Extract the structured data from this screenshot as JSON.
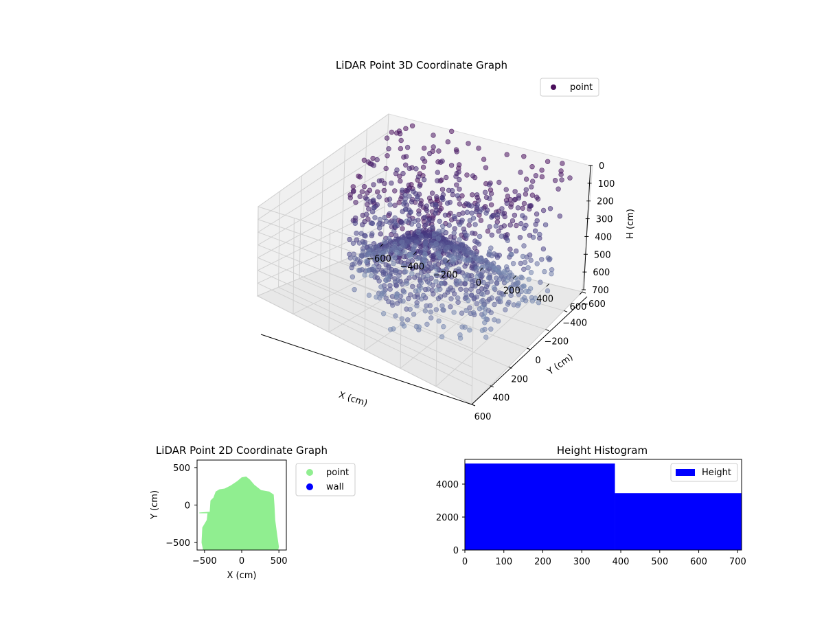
{
  "colors": {
    "point_3d_top": "#4a0f5c",
    "point_3d_mid": "#453b82",
    "point_3d_low": "#7b8fb4",
    "point_2d": "#90ee90",
    "wall_2d": "#0000ff",
    "histogram": "#0000ff"
  },
  "chart_data": [
    {
      "type": "scatter",
      "projection": "3d",
      "title": "LiDAR Point 3D Coordinate Graph",
      "xlabel": "X (cm)",
      "ylabel": "Y (cm)",
      "zlabel": "H (cm)",
      "xlim": [
        -600,
        600
      ],
      "ylim": [
        -600,
        600
      ],
      "zlim": [
        700,
        0
      ],
      "x_ticks": [
        -600,
        -400,
        -200,
        0,
        200,
        400,
        600
      ],
      "y_ticks": [
        -600,
        -400,
        -200,
        0,
        200,
        400,
        600
      ],
      "z_ticks": [
        0,
        100,
        200,
        300,
        400,
        500,
        600,
        700
      ],
      "x_tick_labels": [
        "−600",
        "−400",
        "−200",
        "0",
        "200",
        "400",
        "600"
      ],
      "y_tick_labels": [
        "−600",
        "−400",
        "−200",
        "0",
        "200",
        "400",
        "600"
      ],
      "z_tick_labels": [
        "0",
        "100",
        "200",
        "300",
        "400",
        "500",
        "600",
        "700"
      ],
      "z_inverted": true,
      "grid": true,
      "legend": {
        "placement": "upper-right",
        "entries": [
          "point"
        ]
      },
      "series": [
        {
          "name": "point",
          "description": "dense point cloud; points colored by height (dark purple at top, lighter blue-grey toward ground)",
          "x_range": [
            -550,
            500
          ],
          "y_range": [
            -550,
            400
          ],
          "h_range": [
            0,
            700
          ]
        }
      ]
    },
    {
      "type": "scatter",
      "title": "LiDAR Point 2D Coordinate Graph",
      "xlabel": "X (cm)",
      "ylabel": "Y (cm)",
      "xlim": [
        -600,
        600
      ],
      "ylim": [
        -600,
        600
      ],
      "x_ticks": [
        -500,
        0,
        500
      ],
      "y_ticks": [
        -500,
        0,
        500
      ],
      "x_tick_labels": [
        "−500",
        "0",
        "500"
      ],
      "y_tick_labels": [
        "−500",
        "0",
        "500"
      ],
      "aspect": "equal",
      "legend": {
        "placement": "outside-right",
        "entries": [
          "point",
          "wall"
        ]
      },
      "series": [
        {
          "name": "point",
          "outline": [
            [
              -570,
              -100
            ],
            [
              -430,
              -90
            ],
            [
              -420,
              60
            ],
            [
              -380,
              100
            ],
            [
              -350,
              180
            ],
            [
              -300,
              210
            ],
            [
              -230,
              220
            ],
            [
              -150,
              260
            ],
            [
              -60,
              320
            ],
            [
              0,
              370
            ],
            [
              60,
              380
            ],
            [
              110,
              340
            ],
            [
              170,
              270
            ],
            [
              260,
              200
            ],
            [
              370,
              180
            ],
            [
              430,
              140
            ],
            [
              440,
              0
            ],
            [
              450,
              -200
            ],
            [
              480,
              -420
            ],
            [
              500,
              -560
            ],
            [
              490,
              -600
            ],
            [
              -520,
              -600
            ],
            [
              -540,
              -500
            ],
            [
              -530,
              -300
            ],
            [
              -470,
              -200
            ],
            [
              -460,
              -110
            ],
            [
              -570,
              -110
            ]
          ]
        },
        {
          "name": "wall",
          "points": []
        }
      ]
    },
    {
      "type": "bar",
      "subtype": "histogram",
      "title": "Height Histogram",
      "xlabel": "",
      "ylabel": "",
      "xlim": [
        0,
        710
      ],
      "ylim": [
        0,
        5500
      ],
      "x_ticks": [
        0,
        100,
        200,
        300,
        400,
        500,
        600,
        700
      ],
      "y_ticks": [
        0,
        2000,
        4000
      ],
      "x_tick_labels": [
        "0",
        "100",
        "200",
        "300",
        "400",
        "500",
        "600",
        "700"
      ],
      "y_tick_labels": [
        "0",
        "2000",
        "4000"
      ],
      "bins": [
        [
          0,
          385
        ],
        [
          385,
          710
        ]
      ],
      "values": [
        5250,
        3450
      ],
      "legend": {
        "placement": "upper-right",
        "entries": [
          "Height"
        ]
      },
      "series": [
        {
          "name": "Height",
          "values": [
            5250,
            3450
          ]
        }
      ]
    }
  ]
}
